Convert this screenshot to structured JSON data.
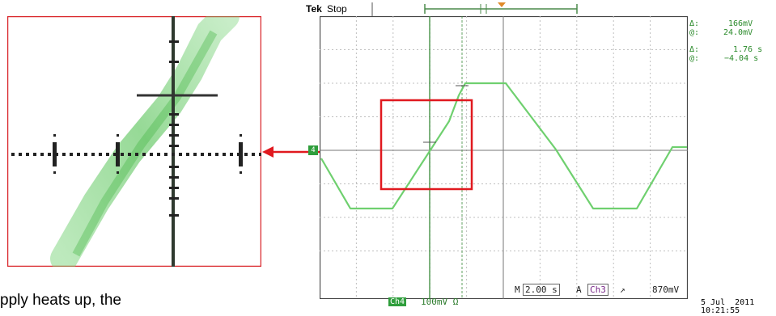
{
  "scope": {
    "brand": "Tek",
    "state": "Stop",
    "measurements": {
      "v_delta": "166mV",
      "v_at": "24.0mV",
      "t_delta": "1.76 s",
      "t_at": "−4.04 s",
      "delta_symbol": "Δ:",
      "at_symbol": "@:"
    },
    "bottom": {
      "m_label": "M",
      "timebase": "2.00 s",
      "a_label": "A",
      "trigger_channel": "Ch3",
      "trigger_slope": "↗",
      "trigger_level": "870mV",
      "channel_badge": "Ch4",
      "channel_scale": "100mV Ω"
    },
    "date": "5 Jul  2011",
    "time": "10:21:55",
    "ground_marker": "4"
  },
  "caption_text": "pply heats up, the",
  "colors": {
    "trace": "#7ad87a",
    "grid": "#bbbbbb",
    "highlight": "#e0191f",
    "measure": "#2a8a2a"
  }
}
